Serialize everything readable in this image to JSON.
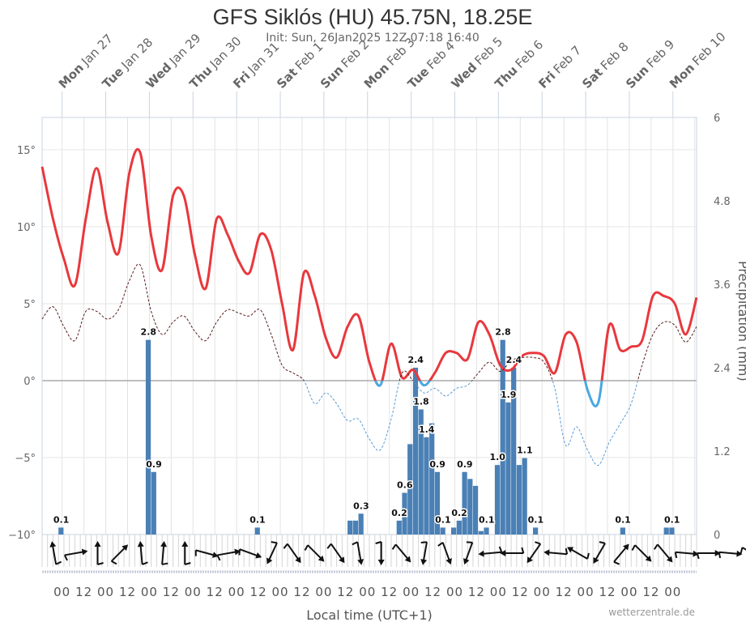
{
  "chart_data": {
    "type": "line",
    "title": "GFS Siklós (HU) 45.75N, 18.25E",
    "subtitle": "Init: Sun, 26Jan2025 12Z 07:18 16:40",
    "xlabel": "Local time (UTC+1)",
    "ylabel_right": "Precipitation (mm)",
    "credit": "wetterzentrale.de",
    "x_range": [
      "2025-01-26T13:00",
      "2025-02-10T13:00"
    ],
    "y_left": {
      "range": [
        -10,
        17.1
      ],
      "ticks": [
        -10,
        -5,
        0,
        5,
        10,
        15
      ],
      "tick_labels": [
        "−10°",
        "−5°",
        "0°",
        "5°",
        "10°",
        "15°"
      ]
    },
    "y_right": {
      "range": [
        0,
        6
      ],
      "ticks": [
        0,
        1.2,
        2.4,
        3.6,
        4.8,
        6
      ],
      "tick_labels": [
        "0",
        "1.2",
        "2.4",
        "3.6",
        "4.8",
        "6"
      ]
    },
    "grid": true,
    "day_labels": [
      {
        "dow": "Mon",
        "date": "Jan 27"
      },
      {
        "dow": "Tue",
        "date": "Jan 28"
      },
      {
        "dow": "Wed",
        "date": "Jan 29"
      },
      {
        "dow": "Thu",
        "date": "Jan 30"
      },
      {
        "dow": "Fri",
        "date": "Jan 31"
      },
      {
        "dow": "Sat",
        "date": "Feb 1"
      },
      {
        "dow": "Sun",
        "date": "Feb 2"
      },
      {
        "dow": "Mon",
        "date": "Feb 3"
      },
      {
        "dow": "Tue",
        "date": "Feb 4"
      },
      {
        "dow": "Wed",
        "date": "Feb 5"
      },
      {
        "dow": "Thu",
        "date": "Feb 6"
      },
      {
        "dow": "Fri",
        "date": "Feb 7"
      },
      {
        "dow": "Sat",
        "date": "Feb 8"
      },
      {
        "dow": "Sun",
        "date": "Feb 9"
      },
      {
        "dow": "Mon",
        "date": "Feb 10"
      }
    ],
    "x_tick_labels": [
      "00",
      "12",
      "00",
      "12",
      "00",
      "12",
      "00",
      "12",
      "00",
      "12",
      "00",
      "12",
      "00",
      "12",
      "00",
      "12",
      "00",
      "12",
      "00",
      "12",
      "00",
      "12",
      "00",
      "12",
      "00",
      "12",
      "00",
      "12",
      "00"
    ],
    "colors": {
      "temp_above": "#e8383d",
      "temp_below": "#4aa8e0",
      "dew_above": "#5a1e1e",
      "dew_below": "#5b9bd5",
      "precip": "#4a80b5"
    },
    "x": [
      "2025-01-26T13",
      "2025-01-26T19",
      "2025-01-27T01",
      "2025-01-27T07",
      "2025-01-27T13",
      "2025-01-27T19",
      "2025-01-28T01",
      "2025-01-28T07",
      "2025-01-28T13",
      "2025-01-28T19",
      "2025-01-29T01",
      "2025-01-29T07",
      "2025-01-29T13",
      "2025-01-29T19",
      "2025-01-30T01",
      "2025-01-30T07",
      "2025-01-30T13",
      "2025-01-30T19",
      "2025-01-31T01",
      "2025-01-31T07",
      "2025-01-31T13",
      "2025-01-31T19",
      "2025-02-01T01",
      "2025-02-01T07",
      "2025-02-01T13",
      "2025-02-01T19",
      "2025-02-02T01",
      "2025-02-02T07",
      "2025-02-02T13",
      "2025-02-02T19",
      "2025-02-03T01",
      "2025-02-03T07",
      "2025-02-03T13",
      "2025-02-03T19",
      "2025-02-04T01",
      "2025-02-04T07",
      "2025-02-04T13",
      "2025-02-04T19",
      "2025-02-05T01",
      "2025-02-05T07",
      "2025-02-05T13",
      "2025-02-05T19",
      "2025-02-06T01",
      "2025-02-06T07",
      "2025-02-06T13",
      "2025-02-06T19",
      "2025-02-07T01",
      "2025-02-07T07",
      "2025-02-07T13",
      "2025-02-07T19",
      "2025-02-08T01",
      "2025-02-08T07",
      "2025-02-08T13",
      "2025-02-08T19",
      "2025-02-09T01",
      "2025-02-09T07",
      "2025-02-09T13",
      "2025-02-09T19",
      "2025-02-10T01",
      "2025-02-10T07",
      "2025-02-10T13"
    ],
    "series": [
      {
        "kind": "temperature",
        "axis": "left",
        "values": [
          13.9,
          10.5,
          7.9,
          6.2,
          10.5,
          13.8,
          10.3,
          8.3,
          13.5,
          14.8,
          9.4,
          7.2,
          12.0,
          12.0,
          8.2,
          6.0,
          10.5,
          9.5,
          7.8,
          7.0,
          9.5,
          8.5,
          5.0,
          2.0,
          7.0,
          5.5,
          2.8,
          1.5,
          3.5,
          4.2,
          1.2,
          -0.3,
          2.4,
          0.2,
          0.7,
          -0.3,
          0.5,
          1.8,
          1.8,
          1.4,
          3.8,
          3.0,
          1.0,
          0.7,
          1.6,
          1.8,
          1.6,
          0.5,
          3.0,
          2.5,
          -0.6,
          -1.4,
          3.6,
          2.0,
          2.2,
          2.6,
          5.5,
          5.5,
          5.0,
          3.0,
          5.4
        ]
      },
      {
        "kind": "dewpoint",
        "axis": "left",
        "values": [
          4.0,
          4.8,
          3.5,
          2.6,
          4.5,
          4.5,
          4.0,
          4.6,
          6.5,
          7.5,
          4.5,
          3.0,
          3.8,
          4.2,
          3.2,
          2.6,
          3.8,
          4.6,
          4.4,
          4.2,
          4.6,
          3.0,
          1.0,
          0.5,
          0.0,
          -1.5,
          -0.8,
          -1.5,
          -2.6,
          -2.5,
          -3.8,
          -4.5,
          -2.5,
          0.5,
          0.0,
          -0.8,
          -0.5,
          -1.0,
          -0.5,
          -0.3,
          0.5,
          1.2,
          0.6,
          1.3,
          1.5,
          1.5,
          1.2,
          -0.5,
          -4.2,
          -3.0,
          -4.5,
          -5.5,
          -4.0,
          -2.8,
          -1.5,
          1.0,
          3.0,
          3.8,
          3.6,
          2.5,
          3.5
        ]
      }
    ],
    "precipitation": [
      {
        "t": "2025-01-27T01",
        "v": 0.1,
        "label": "0.1"
      },
      {
        "t": "2025-01-29T01",
        "v": 2.8,
        "label": "2.8"
      },
      {
        "t": "2025-01-29T04",
        "v": 0.9,
        "label": "0.9"
      },
      {
        "t": "2025-01-31T13",
        "v": 0.1,
        "label": "0.1"
      },
      {
        "t": "2025-02-02T16",
        "v": 0.2
      },
      {
        "t": "2025-02-02T19",
        "v": 0.2
      },
      {
        "t": "2025-02-02T22",
        "v": 0.3,
        "label": "0.3"
      },
      {
        "t": "2025-02-03T19",
        "v": 0.2,
        "label": "0.2"
      },
      {
        "t": "2025-02-03T22",
        "v": 0.6,
        "label": "0.6"
      },
      {
        "t": "2025-02-04T01",
        "v": 1.3
      },
      {
        "t": "2025-02-04T04",
        "v": 2.4,
        "label": "2.4"
      },
      {
        "t": "2025-02-04T07",
        "v": 1.8,
        "label": "1.8"
      },
      {
        "t": "2025-02-04T10",
        "v": 1.4,
        "label": "1.4"
      },
      {
        "t": "2025-02-04T13",
        "v": 1.6
      },
      {
        "t": "2025-02-04T16",
        "v": 0.9,
        "label": "0.9"
      },
      {
        "t": "2025-02-04T19",
        "v": 0.1,
        "label": "0.1"
      },
      {
        "t": "2025-02-05T01",
        "v": 0.1
      },
      {
        "t": "2025-02-05T04",
        "v": 0.2,
        "label": "0.2"
      },
      {
        "t": "2025-02-05T07",
        "v": 0.9,
        "label": "0.9"
      },
      {
        "t": "2025-02-05T10",
        "v": 0.8
      },
      {
        "t": "2025-02-05T13",
        "v": 0.7
      },
      {
        "t": "2025-02-05T16",
        "v": 0.05
      },
      {
        "t": "2025-02-05T19",
        "v": 0.1,
        "label": "0.1"
      },
      {
        "t": "2025-02-06T01",
        "v": 1.0,
        "label": "1.0"
      },
      {
        "t": "2025-02-06T04",
        "v": 2.8,
        "label": "2.8"
      },
      {
        "t": "2025-02-06T07",
        "v": 1.9,
        "label": "1.9"
      },
      {
        "t": "2025-02-06T10",
        "v": 2.4,
        "label": "2.4"
      },
      {
        "t": "2025-02-06T13",
        "v": 1.0
      },
      {
        "t": "2025-02-06T16",
        "v": 1.1,
        "label": "1.1"
      },
      {
        "t": "2025-02-06T22",
        "v": 0.1,
        "label": "0.1"
      },
      {
        "t": "2025-02-08T22",
        "v": 0.1,
        "label": "0.1"
      },
      {
        "t": "2025-02-09T22",
        "v": 0.1
      },
      {
        "t": "2025-02-10T01",
        "v": 0.1,
        "label": "0.1"
      }
    ],
    "wind_direction_deg": [
      350,
      80,
      0,
      45,
      355,
      5,
      0,
      105,
      80,
      110,
      205,
      145,
      135,
      145,
      170,
      180,
      140,
      190,
      160,
      200,
      265,
      270,
      215,
      275,
      300,
      210,
      40,
      135,
      140,
      95,
      90,
      95,
      120
    ]
  }
}
